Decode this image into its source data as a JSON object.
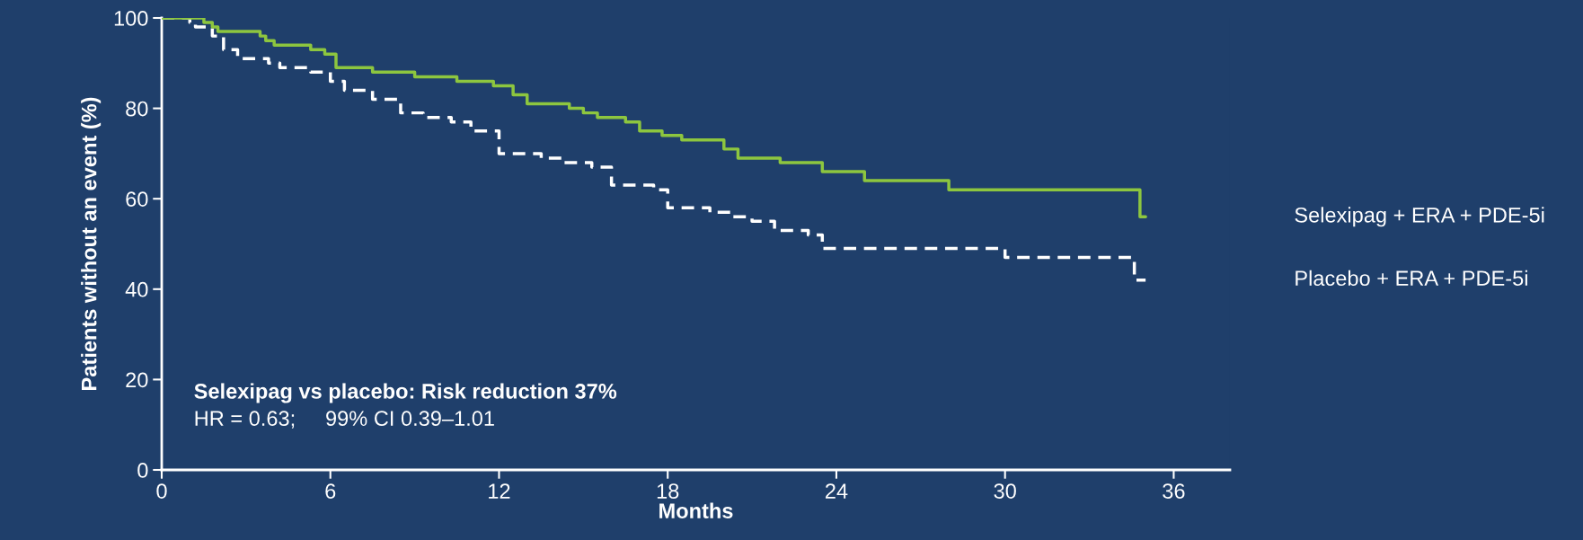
{
  "chart_data": {
    "type": "step",
    "xlabel": "Months",
    "ylabel": "Patients without an event (%)",
    "xlim": [
      0,
      38
    ],
    "xticks": [
      0,
      6,
      12,
      18,
      24,
      30,
      36
    ],
    "ylim": [
      0,
      100
    ],
    "yticks": [
      0,
      20,
      40,
      60,
      80,
      100
    ],
    "grid": false,
    "legend": false,
    "series": [
      {
        "name": "Selexipag + ERA + PDE-5i",
        "color": "#8dc63f",
        "line_style": "solid",
        "x": [
          0,
          1.5,
          1.8,
          2,
          3.5,
          3.7,
          4,
          5.3,
          5.8,
          6.2,
          7.5,
          9,
          10.5,
          11.8,
          12.5,
          13,
          14.5,
          15,
          15.5,
          16.5,
          17,
          17.8,
          18.5,
          20,
          20.5,
          22,
          23.5,
          25,
          28,
          34.8,
          35
        ],
        "values": [
          100,
          99,
          98,
          97,
          96,
          95,
          94,
          93,
          92,
          89,
          88,
          87,
          86,
          85,
          83,
          81,
          80,
          79,
          78,
          77,
          75,
          74,
          73,
          71,
          69,
          68,
          66,
          64,
          62,
          56,
          56
        ]
      },
      {
        "name": "Placebo + ERA + PDE-5i",
        "color": "#ffffff",
        "line_style": "dashed",
        "x": [
          0,
          1,
          1.2,
          1.8,
          2.2,
          2.7,
          3.8,
          4.2,
          5.3,
          6,
          6.5,
          7.5,
          8.5,
          9.3,
          10.3,
          11,
          12,
          13.5,
          14.3,
          15.3,
          16,
          17.5,
          18,
          19.5,
          20.3,
          21,
          21.8,
          23,
          23.5,
          30,
          34.6,
          35
        ],
        "values": [
          100,
          99,
          98,
          96,
          93,
          91,
          90,
          89,
          88,
          86,
          84,
          82,
          79,
          78,
          77,
          75,
          70,
          69,
          68,
          67,
          63,
          62,
          58,
          57,
          56,
          55,
          53,
          52,
          49,
          47,
          42,
          42
        ]
      }
    ],
    "annotations": [
      "Selexipag vs placebo: Risk reduction 37%",
      "HR = 0.63;     99% CI 0.39–1.01"
    ]
  }
}
